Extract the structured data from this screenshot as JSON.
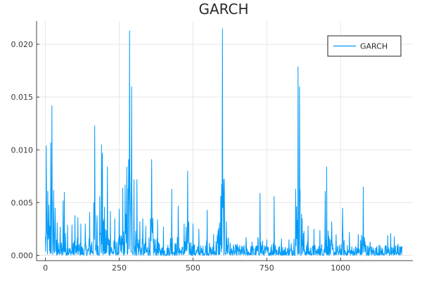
{
  "chart_data": {
    "type": "line",
    "title": "GARCH",
    "xlabel": "",
    "ylabel": "",
    "xlim": [
      -30,
      1245
    ],
    "ylim": [
      -0.0005,
      0.0222
    ],
    "xticks": [
      0,
      250,
      500,
      750,
      1000
    ],
    "xtick_labels": [
      "0",
      "250",
      "500",
      "750",
      "1000"
    ],
    "yticks": [
      0.0,
      0.005,
      0.01,
      0.015,
      0.02
    ],
    "ytick_labels": [
      "0.000",
      "0.005",
      "0.010",
      "0.015",
      "0.020"
    ],
    "grid": true,
    "legend": {
      "position": "top-right",
      "entries": [
        "GARCH"
      ]
    },
    "series": [
      {
        "name": "GARCH",
        "color": "#009af9",
        "n_points": 1210,
        "baseline_level": 0.0008,
        "spikes": [
          [
            3,
            0.0104
          ],
          [
            8,
            0.0061
          ],
          [
            12,
            0.0048
          ],
          [
            18,
            0.0107
          ],
          [
            22,
            0.0142
          ],
          [
            28,
            0.0062
          ],
          [
            33,
            0.0045
          ],
          [
            40,
            0.0031
          ],
          [
            50,
            0.0027
          ],
          [
            60,
            0.0052
          ],
          [
            64,
            0.006
          ],
          [
            75,
            0.0029
          ],
          [
            90,
            0.0029
          ],
          [
            100,
            0.0038
          ],
          [
            110,
            0.0036
          ],
          [
            120,
            0.003
          ],
          [
            135,
            0.003
          ],
          [
            150,
            0.0041
          ],
          [
            167,
            0.0123
          ],
          [
            175,
            0.0038
          ],
          [
            184,
            0.0056
          ],
          [
            190,
            0.0105
          ],
          [
            193,
            0.0097
          ],
          [
            200,
            0.0046
          ],
          [
            210,
            0.0084
          ],
          [
            220,
            0.0042
          ],
          [
            235,
            0.0035
          ],
          [
            250,
            0.0044
          ],
          [
            262,
            0.0064
          ],
          [
            270,
            0.0067
          ],
          [
            276,
            0.0084
          ],
          [
            282,
            0.0091
          ],
          [
            285,
            0.0213
          ],
          [
            292,
            0.016
          ],
          [
            300,
            0.0072
          ],
          [
            310,
            0.0072
          ],
          [
            320,
            0.0032
          ],
          [
            330,
            0.0035
          ],
          [
            340,
            0.0028
          ],
          [
            360,
            0.0091
          ],
          [
            380,
            0.0034
          ],
          [
            400,
            0.0027
          ],
          [
            428,
            0.0063
          ],
          [
            450,
            0.0047
          ],
          [
            470,
            0.003
          ],
          [
            482,
            0.008
          ],
          [
            500,
            0.003
          ],
          [
            520,
            0.0025
          ],
          [
            548,
            0.0043
          ],
          [
            570,
            0.002
          ],
          [
            600,
            0.0215
          ],
          [
            620,
            0.0017
          ],
          [
            650,
            0.0011
          ],
          [
            680,
            0.0017
          ],
          [
            700,
            0.0013
          ],
          [
            727,
            0.0059
          ],
          [
            750,
            0.0015
          ],
          [
            775,
            0.0056
          ],
          [
            800,
            0.0016
          ],
          [
            825,
            0.0015
          ],
          [
            848,
            0.0063
          ],
          [
            856,
            0.0179
          ],
          [
            861,
            0.016
          ],
          [
            870,
            0.0035
          ],
          [
            890,
            0.0028
          ],
          [
            910,
            0.0025
          ],
          [
            930,
            0.0024
          ],
          [
            948,
            0.0061
          ],
          [
            953,
            0.0084
          ],
          [
            970,
            0.0032
          ],
          [
            985,
            0.002
          ],
          [
            1007,
            0.0045
          ],
          [
            1030,
            0.0022
          ],
          [
            1060,
            0.002
          ],
          [
            1077,
            0.0065
          ],
          [
            1100,
            0.0013
          ],
          [
            1130,
            0.001
          ],
          [
            1160,
            0.0019
          ],
          [
            1170,
            0.0021
          ],
          [
            1182,
            0.0018
          ],
          [
            1195,
            0.0011
          ],
          [
            1205,
            0.0003
          ]
        ]
      }
    ]
  }
}
